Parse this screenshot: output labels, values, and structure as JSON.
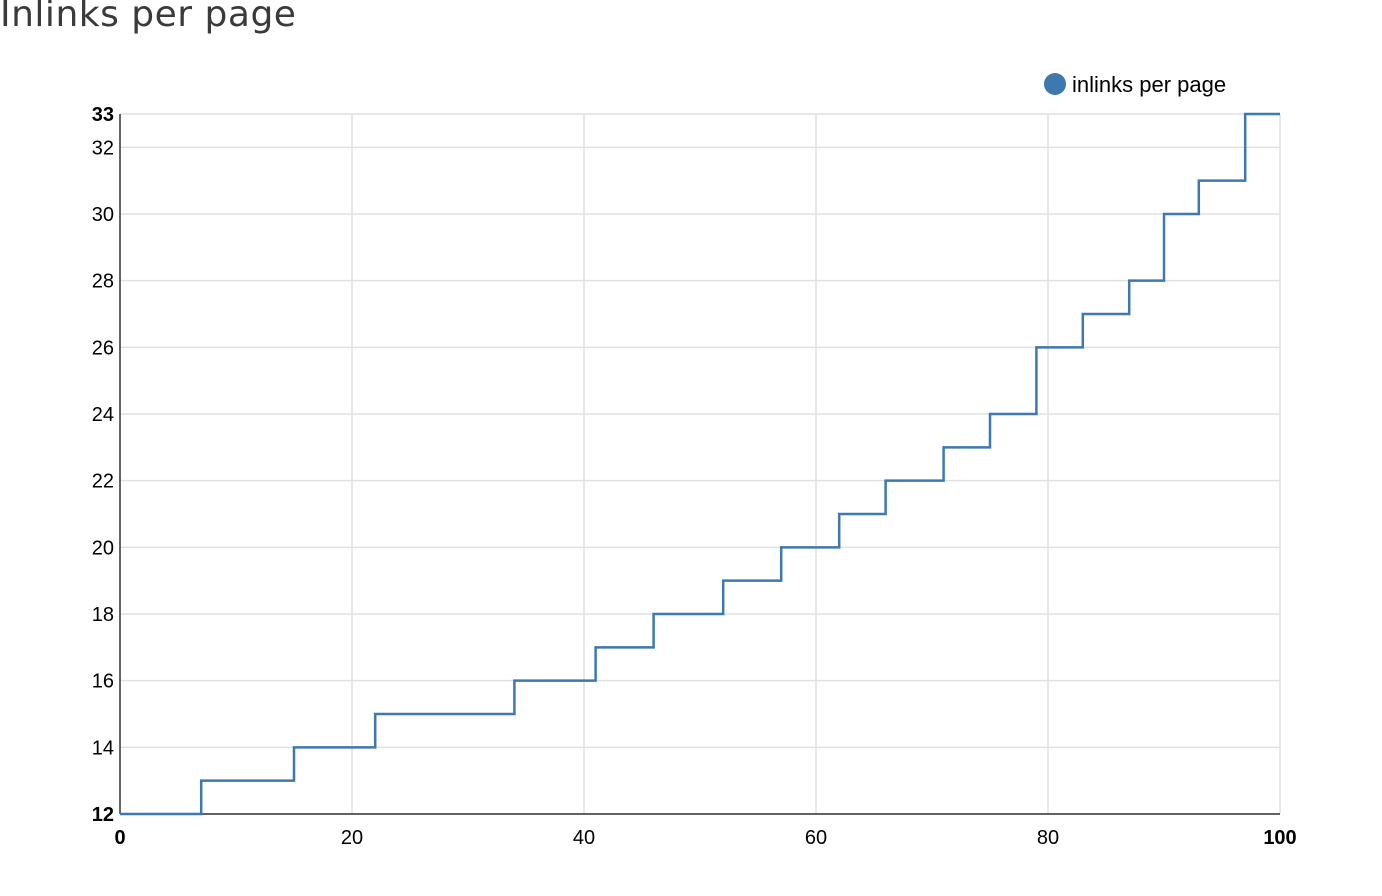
{
  "title": "Inlinks per page",
  "chart_data": {
    "type": "line",
    "title": "Inlinks per page",
    "xlabel": "",
    "ylabel": "",
    "xlim": [
      0,
      100
    ],
    "ylim": [
      12,
      33
    ],
    "grid": true,
    "legend_position": "top-right",
    "step": true,
    "x_ticks": [
      0,
      20,
      40,
      60,
      80,
      100
    ],
    "y_ticks": [
      12,
      14,
      16,
      18,
      20,
      22,
      24,
      26,
      28,
      30,
      32,
      33
    ],
    "bold_ticks": {
      "x": [
        0,
        100
      ],
      "y": [
        12,
        33
      ]
    },
    "series": [
      {
        "name": "inlinks per page",
        "color": "#3d78b0",
        "steps": [
          {
            "x": 0,
            "y": 12
          },
          {
            "x": 7,
            "y": 13
          },
          {
            "x": 15,
            "y": 14
          },
          {
            "x": 22,
            "y": 15
          },
          {
            "x": 34,
            "y": 16
          },
          {
            "x": 41,
            "y": 17
          },
          {
            "x": 46,
            "y": 18
          },
          {
            "x": 52,
            "y": 19
          },
          {
            "x": 57,
            "y": 20
          },
          {
            "x": 62,
            "y": 21
          },
          {
            "x": 66,
            "y": 22
          },
          {
            "x": 71,
            "y": 23
          },
          {
            "x": 75,
            "y": 24
          },
          {
            "x": 79,
            "y": 26
          },
          {
            "x": 83,
            "y": 27
          },
          {
            "x": 87,
            "y": 28
          },
          {
            "x": 90,
            "y": 30
          },
          {
            "x": 93,
            "y": 31
          },
          {
            "x": 97,
            "y": 33
          },
          {
            "x": 100,
            "y": 33
          }
        ]
      }
    ]
  }
}
